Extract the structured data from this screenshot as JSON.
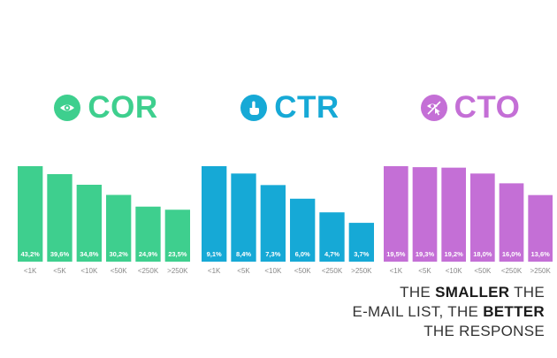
{
  "chart_data": [
    {
      "type": "bar",
      "title": "COR",
      "color": "#3ecf8e",
      "icon": "eye-icon",
      "categories": [
        "<1K",
        "<5K",
        "<10K",
        "<50K",
        "<250K",
        ">250K"
      ],
      "values": [
        43.2,
        39.6,
        34.8,
        30.2,
        24.9,
        23.5
      ],
      "value_labels": [
        "43,2%",
        "39,6%",
        "34,8%",
        "30,2%",
        "24,9%",
        "23,5%"
      ]
    },
    {
      "type": "bar",
      "title": "CTR",
      "color": "#16a9d6",
      "icon": "pointer-hand-icon",
      "categories": [
        "<1K",
        "<5K",
        "<10K",
        "<50K",
        "<250K",
        ">250K"
      ],
      "values": [
        9.1,
        8.4,
        7.3,
        6.0,
        4.7,
        3.7
      ],
      "value_labels": [
        "9,1%",
        "8,4%",
        "7,3%",
        "6,0%",
        "4,7%",
        "3,7%"
      ]
    },
    {
      "type": "bar",
      "title": "CTO",
      "color": "#c46fd6",
      "icon": "click-through-icon",
      "categories": [
        "<1K",
        "<5K",
        "<10K",
        "<50K",
        "<250K",
        ">250K"
      ],
      "values": [
        19.5,
        19.3,
        19.2,
        18.0,
        16.0,
        13.6
      ],
      "value_labels": [
        "19,5%",
        "19,3%",
        "19,2%",
        "18,0%",
        "16,0%",
        "13,6%"
      ]
    }
  ],
  "footer": {
    "line1_pre": "THE ",
    "line1_bold": "SMALLER",
    "line1_post": " THE",
    "line2_pre": "E-MAIL LIST, THE ",
    "line2_bold": "BETTER",
    "line3": "THE RESPONSE"
  }
}
